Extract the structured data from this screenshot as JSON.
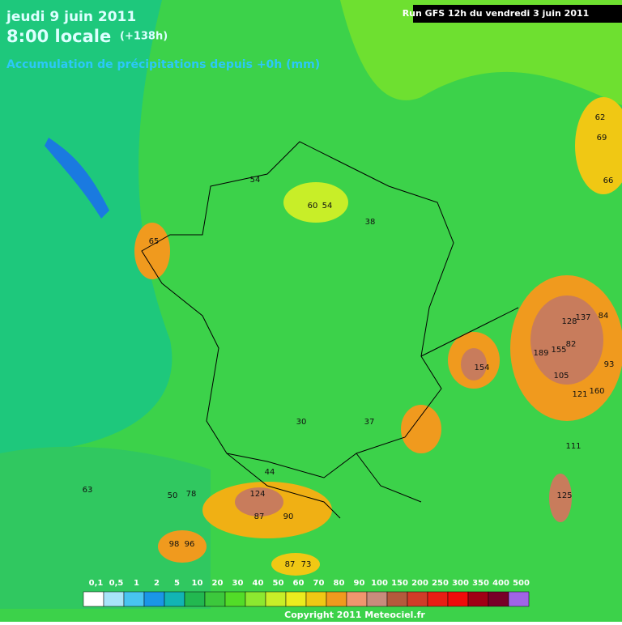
{
  "header": {
    "date": "jeudi 9 juin 2011",
    "time": "8:00 locale",
    "lead": "(+138h)",
    "subtitle": "Accumulation de précipitations depuis +0h (mm)",
    "run": "Run GFS 12h du vendredi 3 juin 2011"
  },
  "map_values": [
    189,
    155,
    128,
    137,
    121,
    160,
    105,
    154,
    124,
    125,
    98,
    96,
    87,
    73,
    90,
    87,
    111,
    93,
    84,
    82,
    65,
    66,
    69,
    62,
    54,
    60,
    54,
    38,
    37,
    30,
    44,
    78,
    63,
    50
  ],
  "legend": {
    "labels": [
      {
        "value": 0.1,
        "label": "0,1"
      },
      {
        "value": 0.5,
        "label": "0,5"
      },
      1,
      2,
      5,
      10,
      20,
      30,
      40,
      50,
      60,
      70,
      80,
      90,
      100,
      150,
      200,
      250,
      300,
      350,
      400,
      500
    ],
    "colors": [
      "#ffffff",
      "#a8e4f8",
      "#48c4f0",
      "#1a96e6",
      "#12b4b4",
      "#22b850",
      "#3cc83c",
      "#52dc28",
      "#8ce830",
      "#c8ee28",
      "#ecec1e",
      "#f0c814",
      "#f09a1e",
      "#f0966e",
      "#c88c7c",
      "#b45a3c",
      "#d03c28",
      "#e81e14",
      "#f00a0a",
      "#a00014",
      "#780028",
      "#a064e6"
    ]
  },
  "copyright": "Copyright 2011 Meteociel.fr"
}
